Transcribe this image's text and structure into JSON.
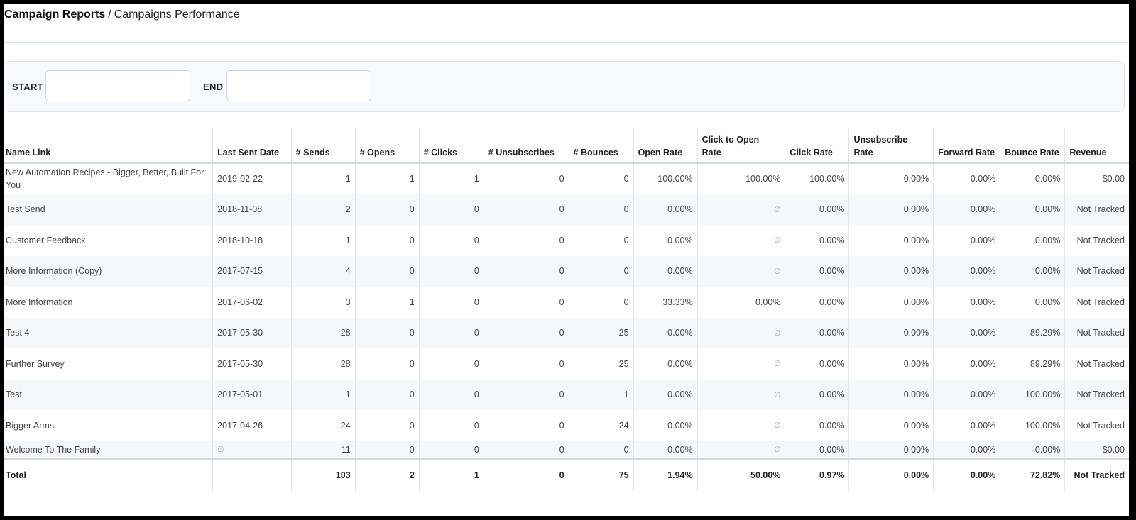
{
  "breadcrumb": {
    "root": "Campaign Reports",
    "separator": "/",
    "current": "Campaigns Performance"
  },
  "filters": {
    "start_label": "START",
    "start_value": "",
    "start_placeholder": "",
    "end_label": "END",
    "end_value": "",
    "end_placeholder": ""
  },
  "table": {
    "columns": [
      "Name Link",
      "Last Sent Date",
      "# Sends",
      "# Opens",
      "# Clicks",
      "# Unsubscribes",
      "# Bounces",
      "Open Rate",
      "Click to Open Rate",
      "Click Rate",
      "Unsubscribe Rate",
      "Forward Rate",
      "Bounce Rate",
      "Revenue"
    ],
    "rows": [
      [
        "New Automation Recipes - Bigger, Better, Built For You",
        "2019-02-22",
        "1",
        "1",
        "1",
        "0",
        "0",
        "100.00%",
        "100.00%",
        "100.00%",
        "0.00%",
        "0.00%",
        "0.00%",
        "$0.00"
      ],
      [
        "Test Send",
        "2018-11-08",
        "2",
        "0",
        "0",
        "0",
        "0",
        "0.00%",
        "∅",
        "0.00%",
        "0.00%",
        "0.00%",
        "0.00%",
        "Not Tracked"
      ],
      [
        "Customer Feedback",
        "2018-10-18",
        "1",
        "0",
        "0",
        "0",
        "0",
        "0.00%",
        "∅",
        "0.00%",
        "0.00%",
        "0.00%",
        "0.00%",
        "Not Tracked"
      ],
      [
        "More Information (Copy)",
        "2017-07-15",
        "4",
        "0",
        "0",
        "0",
        "0",
        "0.00%",
        "∅",
        "0.00%",
        "0.00%",
        "0.00%",
        "0.00%",
        "Not Tracked"
      ],
      [
        "More Information",
        "2017-06-02",
        "3",
        "1",
        "0",
        "0",
        "0",
        "33.33%",
        "0.00%",
        "0.00%",
        "0.00%",
        "0.00%",
        "0.00%",
        "Not Tracked"
      ],
      [
        "Test 4",
        "2017-05-30",
        "28",
        "0",
        "0",
        "0",
        "25",
        "0.00%",
        "∅",
        "0.00%",
        "0.00%",
        "0.00%",
        "89.29%",
        "Not Tracked"
      ],
      [
        "Further Survey",
        "2017-05-30",
        "28",
        "0",
        "0",
        "0",
        "25",
        "0.00%",
        "∅",
        "0.00%",
        "0.00%",
        "0.00%",
        "89.29%",
        "Not Tracked"
      ],
      [
        "Test",
        "2017-05-01",
        "1",
        "0",
        "0",
        "0",
        "1",
        "0.00%",
        "∅",
        "0.00%",
        "0.00%",
        "0.00%",
        "100.00%",
        "Not Tracked"
      ],
      [
        "Bigger Arms",
        "2017-04-26",
        "24",
        "0",
        "0",
        "0",
        "24",
        "0.00%",
        "∅",
        "0.00%",
        "0.00%",
        "0.00%",
        "100.00%",
        "Not Tracked"
      ],
      [
        "Welcome To The Family",
        "∅",
        "11",
        "0",
        "0",
        "0",
        "0",
        "0.00%",
        "∅",
        "0.00%",
        "0.00%",
        "0.00%",
        "0.00%",
        "$0.00"
      ]
    ],
    "total": [
      "Total",
      "",
      "103",
      "2",
      "1",
      "0",
      "75",
      "1.94%",
      "50.00%",
      "0.97%",
      "0.00%",
      "0.00%",
      "72.82%",
      "Not Tracked"
    ]
  }
}
